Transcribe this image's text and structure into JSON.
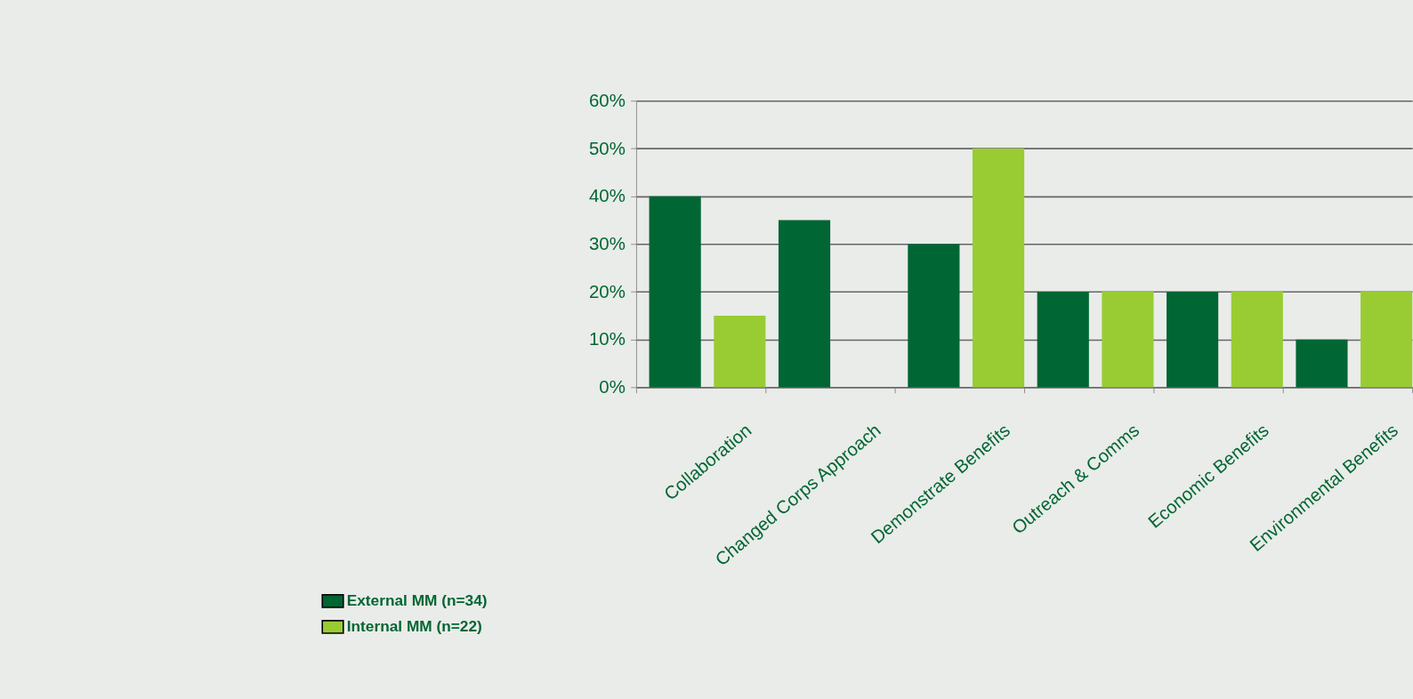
{
  "chart_data": {
    "type": "bar",
    "categories": [
      "Collaboration",
      "Changed Corps Approach",
      "Demonstrate Benefits",
      "Outreach & Comms",
      "Economic Benefits",
      "Environmental Benefits"
    ],
    "series": [
      {
        "name": "External MM (n=34)",
        "color": "#006633",
        "values": [
          40,
          35,
          30,
          20,
          20,
          10
        ]
      },
      {
        "name": "Internal MM (n=22)",
        "color": "#99cc33",
        "values": [
          15,
          0,
          50,
          20,
          20,
          20
        ]
      }
    ],
    "ylim": [
      0,
      60
    ],
    "yticks": [
      {
        "value": 0,
        "label": "0%"
      },
      {
        "value": 10,
        "label": "10%"
      },
      {
        "value": 20,
        "label": "20%"
      },
      {
        "value": 30,
        "label": "30%"
      },
      {
        "value": 40,
        "label": "40%"
      },
      {
        "value": 50,
        "label": "50%"
      },
      {
        "value": 60,
        "label": "60%"
      }
    ],
    "grid": "y",
    "legend": "bottom left"
  }
}
